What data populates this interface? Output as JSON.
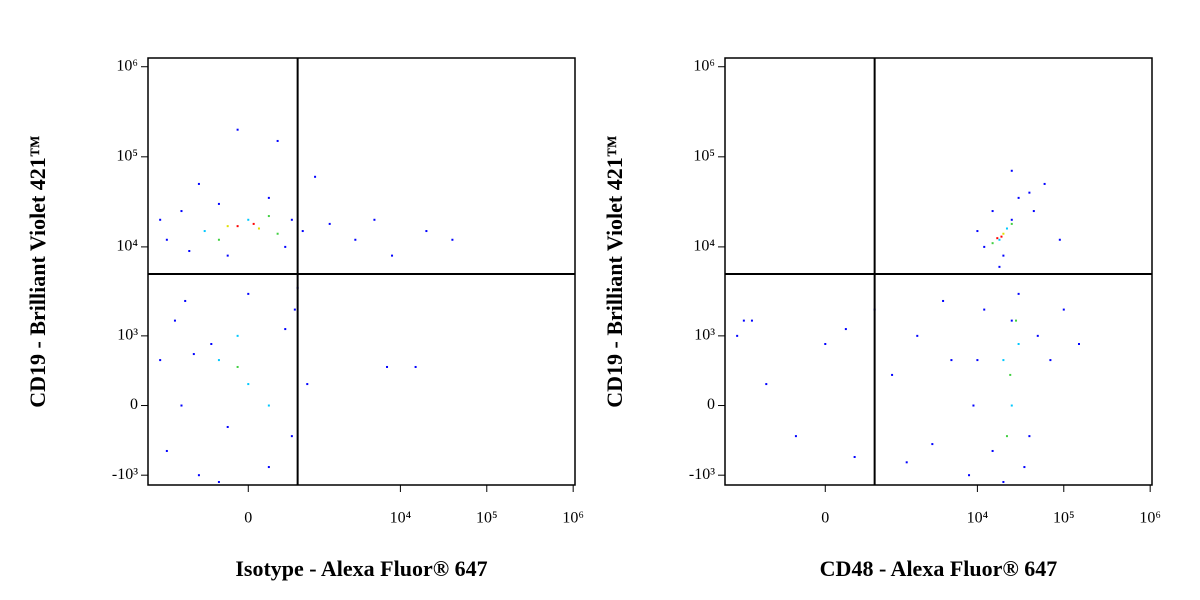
{
  "chart_data": [
    {
      "type": "scatter",
      "x_label": "Isotype - Alexa Fluor® 647",
      "y_label": "CD19 - Brilliant Violet 421™",
      "xlim": [
        -2500,
        1050000
      ],
      "ylim": [
        -1300,
        1250000
      ],
      "xticks": [
        0,
        {
          "value": 10000,
          "label": "10⁴"
        },
        {
          "value": 100000,
          "label": "10⁵"
        },
        {
          "value": 1000000,
          "label": "10⁶"
        }
      ],
      "yticks": [
        {
          "value": -1000,
          "label": "-10³"
        },
        0,
        {
          "value": 1000,
          "label": "10³"
        },
        {
          "value": 10000,
          "label": "10⁴"
        },
        {
          "value": 100000,
          "label": "10⁵"
        },
        {
          "value": 1000000,
          "label": "10⁶"
        }
      ],
      "quadrant_x": 600,
      "quadrant_y": 5000,
      "series": [
        {
          "color": "#0000ff",
          "x": [
            -1500,
            -1000,
            -800,
            -300,
            -200,
            200,
            400,
            500,
            -1800,
            700,
            1500,
            3000,
            5000,
            20000,
            40000,
            -100,
            300,
            1000,
            8000,
            -600,
            -1800,
            -1500,
            -1200,
            -900,
            -600,
            -400,
            -200,
            0,
            200,
            400,
            500,
            550,
            -1000,
            -700,
            100,
            -300,
            800,
            600,
            15000,
            7000
          ],
          "y": [
            12000,
            25000,
            9000,
            30000,
            8000,
            35000,
            10000,
            20000,
            20000,
            15000,
            18000,
            12000,
            20000,
            15000,
            12000,
            200000,
            150000,
            60000,
            8000,
            50000,
            500,
            -500,
            1500,
            2500,
            -1000,
            800,
            -200,
            3000,
            -800,
            1200,
            -300,
            2000,
            0,
            600,
            5000,
            -1200,
            200,
            3500,
            400,
            400
          ]
        },
        {
          "color": "#00c8ff",
          "x": [
            -500,
            0,
            -300,
            0,
            -100,
            200
          ],
          "y": [
            15000,
            20000,
            500,
            200,
            1000,
            0
          ]
        },
        {
          "color": "#40d040",
          "x": [
            300,
            -300,
            200,
            -100
          ],
          "y": [
            14000,
            12000,
            22000,
            400
          ]
        },
        {
          "color": "#e0e000",
          "x": [
            -200,
            100
          ],
          "y": [
            17000,
            16000
          ]
        },
        {
          "color": "#ff0000",
          "x": [
            -100,
            50
          ],
          "y": [
            17000,
            18000
          ]
        }
      ]
    },
    {
      "type": "scatter",
      "x_label": "CD48 - Alexa Fluor® 647",
      "y_label": "CD19 - Brilliant Violet 421™",
      "xlim": [
        -2500,
        1050000
      ],
      "ylim": [
        -1300,
        1250000
      ],
      "xticks": [
        0,
        {
          "value": 10000,
          "label": "10⁴"
        },
        {
          "value": 100000,
          "label": "10⁵"
        },
        {
          "value": 1000000,
          "label": "10⁶"
        }
      ],
      "yticks": [
        {
          "value": -1000,
          "label": "-10³"
        },
        0,
        {
          "value": 1000,
          "label": "10³"
        },
        {
          "value": 10000,
          "label": "10⁴"
        },
        {
          "value": 100000,
          "label": "10⁵"
        },
        {
          "value": 1000000,
          "label": "10⁶"
        }
      ],
      "quadrant_x": 600,
      "quadrant_y": 5000,
      "series": [
        {
          "color": "#0000ff",
          "x": [
            12000,
            15000,
            20000,
            30000,
            40000,
            10000,
            25000,
            18000,
            45000,
            60000,
            90000,
            25000,
            8000,
            10000,
            12000,
            15000,
            20000,
            25000,
            30000,
            40000,
            50000,
            70000,
            100000,
            150000,
            9000,
            35000,
            -1800,
            -1200,
            -800,
            -300,
            0,
            300,
            600,
            1000,
            2000,
            3000,
            5000,
            -1500,
            200,
            4000,
            1500
          ],
          "y": [
            10000,
            25000,
            8000,
            35000,
            40000,
            15000,
            20000,
            6000,
            25000,
            50000,
            12000,
            70000,
            -1000,
            500,
            2000,
            -500,
            -1200,
            1500,
            3000,
            -300,
            1000,
            500,
            2000,
            800,
            0,
            -800,
            1000,
            1500,
            200,
            -300,
            800,
            -600,
            2000,
            300,
            1000,
            -400,
            500,
            1500,
            1200,
            2500,
            -700
          ]
        },
        {
          "color": "#00c8ff",
          "x": [
            18000,
            22000,
            20000,
            25000,
            30000
          ],
          "y": [
            12000,
            16000,
            500,
            0,
            800
          ]
        },
        {
          "color": "#40d040",
          "x": [
            15000,
            25000,
            22000,
            28000,
            24000
          ],
          "y": [
            11000,
            18000,
            -300,
            1500,
            300
          ]
        },
        {
          "color": "#e0e000",
          "x": [
            20000
          ],
          "y": [
            14000
          ]
        },
        {
          "color": "#ff0000",
          "x": [
            19000,
            17000
          ],
          "y": [
            13000,
            12500
          ]
        }
      ]
    }
  ]
}
